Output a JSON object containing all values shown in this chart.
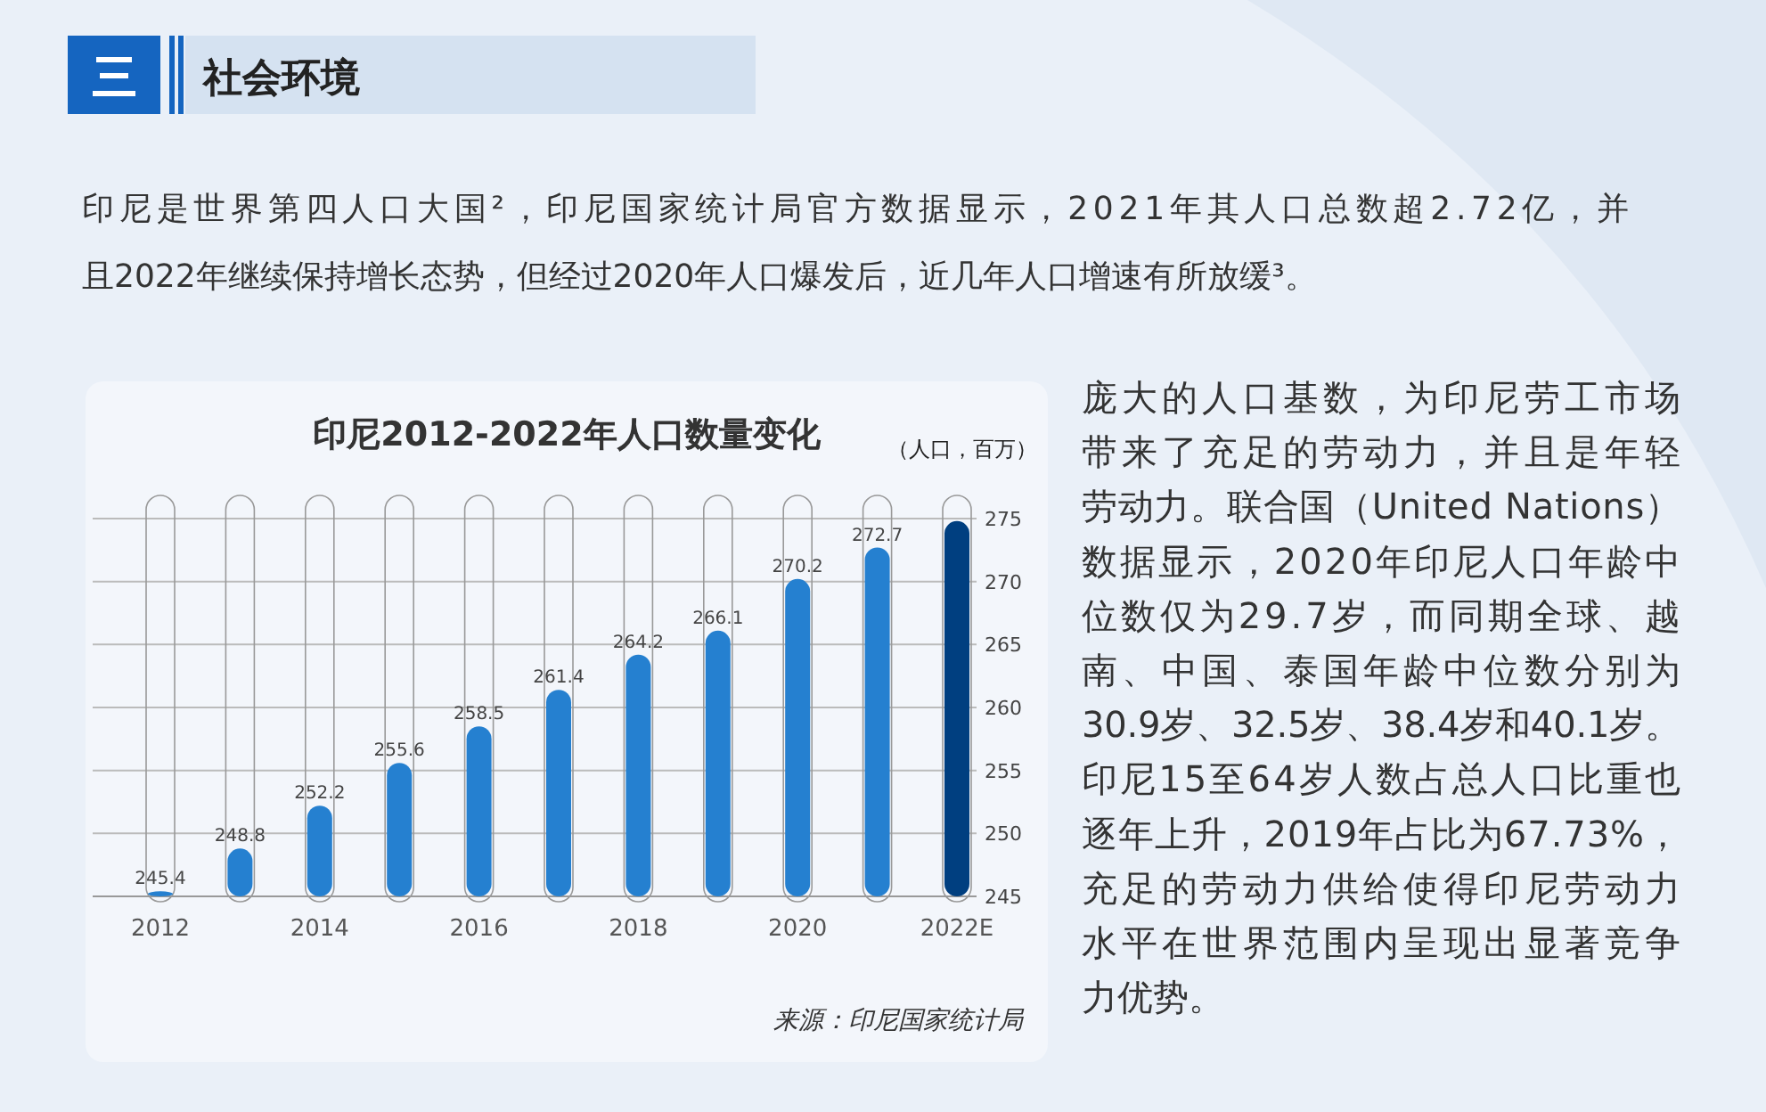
{
  "chart_data": {
    "type": "bar",
    "title": "印尼2012-2022年人口数量变化",
    "ylabel": "（人口，百万）",
    "categories": [
      "2012",
      null,
      "2014",
      null,
      "2016",
      null,
      "2018",
      null,
      "2020",
      null,
      "2022E"
    ],
    "values": [
      245.4,
      248.8,
      252.2,
      255.6,
      258.5,
      261.4,
      264.2,
      266.1,
      270.2,
      272.7,
      274.8
    ],
    "colors": [
      "#2580d0",
      "#2580d0",
      "#2580d0",
      "#2580d0",
      "#2580d0",
      "#2580d0",
      "#2580d0",
      "#2580d0",
      "#2580d0",
      "#2580d0",
      "#003f80"
    ],
    "value_labels": [
      "245.4",
      "248.8",
      "252.2",
      "255.6",
      "258.5",
      "261.4",
      "264.2",
      "266.1",
      "270.2",
      "272.7",
      null
    ],
    "ylim": [
      245,
      275
    ],
    "yticks": [
      245,
      250,
      255,
      260,
      265,
      270,
      275
    ],
    "grid": "y",
    "annotations": [
      "社会环境",
      "印尼是世界第四人口大国²，印尼国家统计局官方数据显示，2021年其人口总数超2.72亿，并且2022年继续保持增长态势，但经过2020年人口爆发后，近几年人口增速有所放缓³。",
      "庞大的人口基数，为印尼劳工市场带来了充足的劳动力，并且是年轻劳动力。联合国（United Nations）数据显示，2020年印尼人口年龄中位数仅为29.7岁，而同期全球、越南、中国、泰国年龄中位数分别为30.9岁、32.5岁、38.4岁和40.1岁。印尼15至64岁人数占总人口比重也逐年上升，2019年占比为67.73%，充足的劳动力供给使得印尼劳动力水平在世界范围内呈现出显著竞争力优势。",
      "来源：印尼国家统计局"
    ]
  }
}
